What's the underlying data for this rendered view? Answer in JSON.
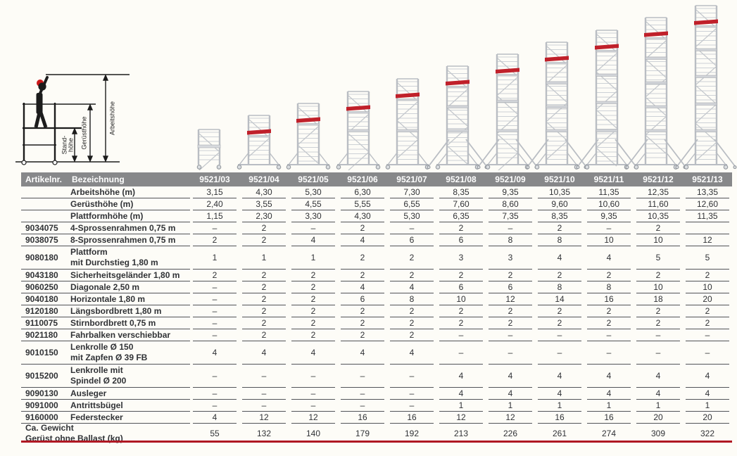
{
  "page": {
    "background": "#fdfcf7",
    "accent_red": "#b01823",
    "header_gray": "#87888a",
    "tower_red": "#c0202a",
    "lattice_gray": "#b9bdc3"
  },
  "pictogram": {
    "labels": {
      "stand": "Stand-\nhöhe",
      "geruest": "Gerüsthöhe",
      "arbeit": "Arbeitshöhe"
    }
  },
  "table": {
    "header": {
      "artikelnr": "Artikelnr.",
      "bezeichnung": "Bezeichnung"
    },
    "models": [
      "9521/03",
      "9521/04",
      "9521/05",
      "9521/06",
      "9521/07",
      "9521/08",
      "9521/09",
      "9521/10",
      "9521/11",
      "9521/12",
      "9521/13"
    ],
    "rows": [
      {
        "art": "",
        "label": "Arbeitshöhe (m)",
        "values": [
          "3,15",
          "4,30",
          "5,30",
          "6,30",
          "7,30",
          "8,35",
          "9,35",
          "10,35",
          "11,35",
          "12,35",
          "13,35"
        ]
      },
      {
        "art": "",
        "label": "Gerüsthöhe (m)",
        "values": [
          "2,40",
          "3,55",
          "4,55",
          "5,55",
          "6,55",
          "7,60",
          "8,60",
          "9,60",
          "10,60",
          "11,60",
          "12,60"
        ]
      },
      {
        "art": "",
        "label": "Plattformhöhe (m)",
        "values": [
          "1,15",
          "2,30",
          "3,30",
          "4,30",
          "5,30",
          "6,35",
          "7,35",
          "8,35",
          "9,35",
          "10,35",
          "11,35"
        ]
      },
      {
        "art": "9034075",
        "label": "4-Sprossenrahmen 0,75 m",
        "values": [
          "–",
          "2",
          "–",
          "2",
          "–",
          "2",
          "–",
          "2",
          "–",
          "2",
          ""
        ]
      },
      {
        "art": "9038075",
        "label": "8-Sprossenrahmen 0,75 m",
        "values": [
          "2",
          "2",
          "4",
          "4",
          "6",
          "6",
          "8",
          "8",
          "10",
          "10",
          "12"
        ]
      },
      {
        "art": "9080180",
        "label": "Plattform\nmit Durchstieg 1,80 m",
        "values": [
          "1",
          "1",
          "1",
          "2",
          "2",
          "3",
          "3",
          "4",
          "4",
          "5",
          "5"
        ]
      },
      {
        "art": "9043180",
        "label": "Sicherheitsgeländer 1,80 m",
        "values": [
          "2",
          "2",
          "2",
          "2",
          "2",
          "2",
          "2",
          "2",
          "2",
          "2",
          "2"
        ]
      },
      {
        "art": "9060250",
        "label": "Diagonale 2,50 m",
        "values": [
          "–",
          "2",
          "2",
          "4",
          "4",
          "6",
          "6",
          "8",
          "8",
          "10",
          "10"
        ]
      },
      {
        "art": "9040180",
        "label": "Horizontale 1,80 m",
        "values": [
          "–",
          "2",
          "2",
          "6",
          "8",
          "10",
          "12",
          "14",
          "16",
          "18",
          "20"
        ]
      },
      {
        "art": "9120180",
        "label": "Längsbordbrett 1,80 m",
        "values": [
          "–",
          "2",
          "2",
          "2",
          "2",
          "2",
          "2",
          "2",
          "2",
          "2",
          "2"
        ]
      },
      {
        "art": "9110075",
        "label": "Stirnbordbrett 0,75 m",
        "values": [
          "–",
          "2",
          "2",
          "2",
          "2",
          "2",
          "2",
          "2",
          "2",
          "2",
          "2"
        ]
      },
      {
        "art": "9021180",
        "label": "Fahrbalken verschiebbar",
        "values": [
          "–",
          "2",
          "2",
          "2",
          "2",
          "–",
          "–",
          "–",
          "–",
          "–",
          "–"
        ]
      },
      {
        "art": "9010150",
        "label": "Lenkrolle Ø 150\nmit Zapfen Ø 39 FB",
        "values": [
          "4",
          "4",
          "4",
          "4",
          "4",
          "–",
          "–",
          "–",
          "–",
          "–",
          "–"
        ]
      },
      {
        "art": "9015200",
        "label": "Lenkrolle mit\nSpindel Ø 200",
        "values": [
          "–",
          "–",
          "–",
          "–",
          "–",
          "4",
          "4",
          "4",
          "4",
          "4",
          "4"
        ]
      },
      {
        "art": "9090130",
        "label": "Ausleger",
        "values": [
          "–",
          "–",
          "–",
          "–",
          "–",
          "4",
          "4",
          "4",
          "4",
          "4",
          "4"
        ]
      },
      {
        "art": "9091000",
        "label": "Antrittsbügel",
        "values": [
          "–",
          "–",
          "–",
          "–",
          "–",
          "1",
          "1",
          "1",
          "1",
          "1",
          "1"
        ]
      },
      {
        "art": "9160000",
        "label": "Federstecker",
        "values": [
          "4",
          "12",
          "12",
          "16",
          "16",
          "12",
          "12",
          "16",
          "16",
          "20",
          "20"
        ]
      }
    ],
    "footer": {
      "label": "Ca. Gewicht\nGerüst ohne Ballast (kg)",
      "values": [
        "55",
        "132",
        "140",
        "179",
        "192",
        "213",
        "226",
        "261",
        "274",
        "309",
        "322"
      ]
    }
  }
}
